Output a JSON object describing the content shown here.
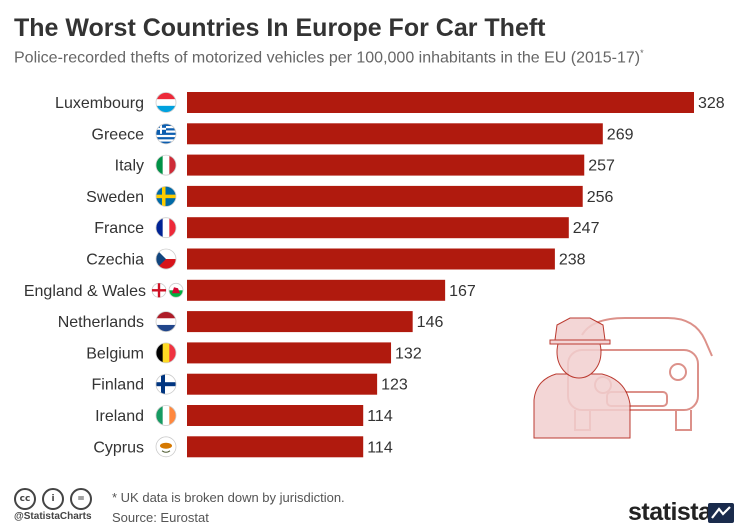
{
  "header": {
    "title": "The Worst Countries In Europe For Car Theft",
    "subtitle": "Police-recorded thefts of motorized vehicles per 100,000 inhabitants in the EU (2015-17)",
    "subtitle_mark": "*"
  },
  "chart_data": {
    "type": "bar",
    "orientation": "horizontal",
    "title": "The Worst Countries In Europe For Car Theft",
    "subtitle": "Police-recorded thefts of motorized vehicles per 100,000 inhabitants in the EU (2015-17)*",
    "categories": [
      "Luxembourg",
      "Greece",
      "Italy",
      "Sweden",
      "France",
      "Czechia",
      "England & Wales",
      "Netherlands",
      "Belgium",
      "Finland",
      "Ireland",
      "Cyprus"
    ],
    "values": [
      328,
      269,
      257,
      256,
      247,
      238,
      167,
      146,
      132,
      123,
      114,
      114
    ],
    "xlim": [
      0,
      328
    ],
    "bar_color": "#b01a0e",
    "grid": false,
    "legend": "none"
  },
  "flags": [
    "luxembourg-flag-icon",
    "greece-flag-icon",
    "italy-flag-icon",
    "sweden-flag-icon",
    "france-flag-icon",
    "czechia-flag-icon",
    "england-flag-icon",
    "netherlands-flag-icon",
    "belgium-flag-icon",
    "finland-flag-icon",
    "ireland-flag-icon",
    "cyprus-flag-icon"
  ],
  "illustration": "car-thief-icon",
  "footer": {
    "note": "* UK data is broken down by jurisdiction.",
    "source": "Source: Eurostat",
    "handle": "@StatistaCharts",
    "brand": "statista",
    "cc_labels": [
      "cc",
      "i",
      "="
    ]
  },
  "colors": {
    "accent": "#b01a0e",
    "text": "#333333",
    "illustration": "#f2d0d0"
  }
}
